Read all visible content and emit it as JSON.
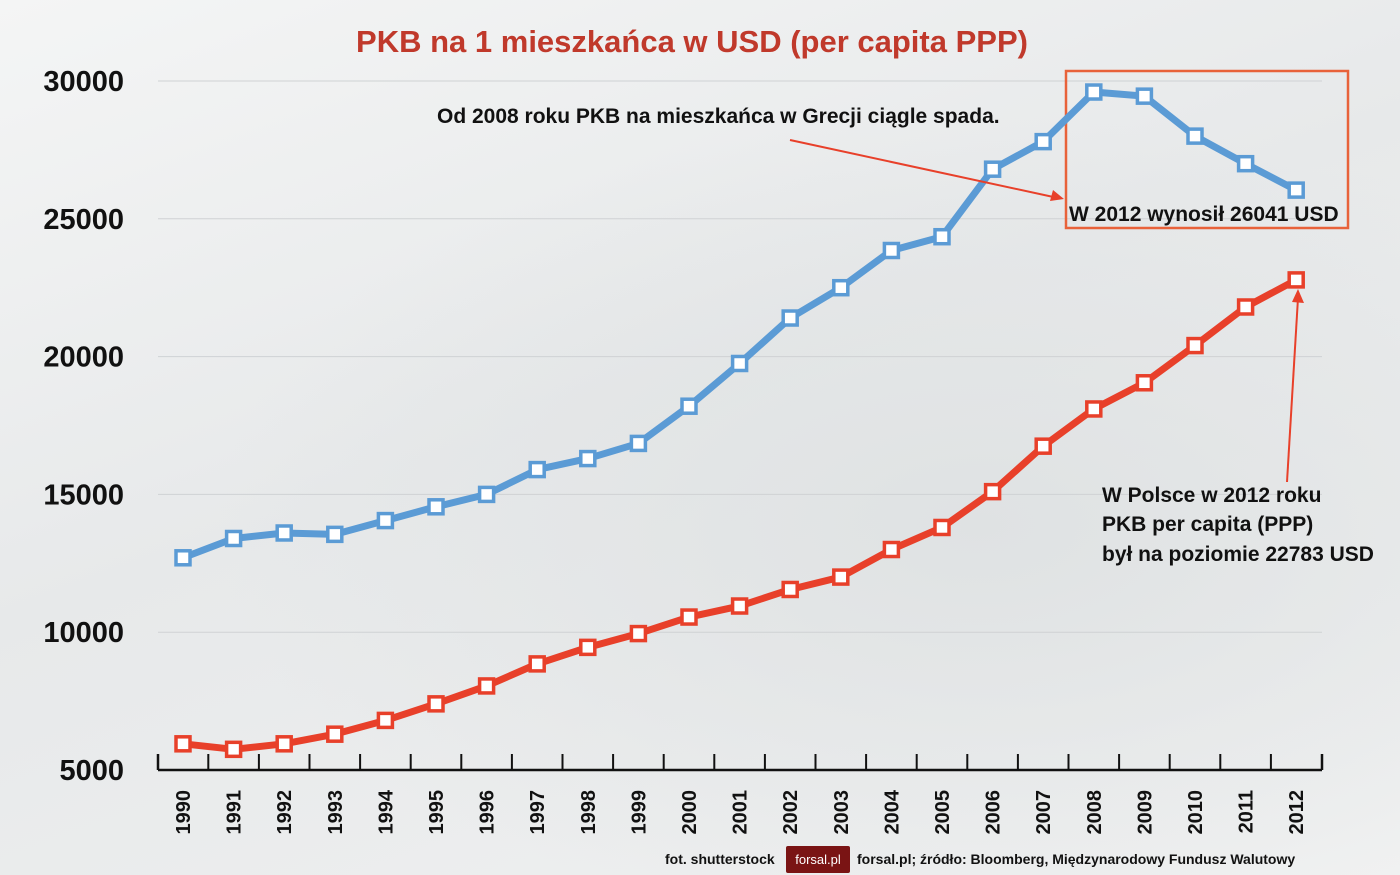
{
  "chart_data": {
    "type": "line",
    "title": "PKB na 1 mieszkańca w USD (per capita PPP)",
    "xlabel": "",
    "ylabel": "",
    "ylim": [
      5000,
      30000
    ],
    "yticks": [
      5000,
      10000,
      15000,
      20000,
      25000,
      30000
    ],
    "grid": true,
    "categories": [
      "1990",
      "1991",
      "1992",
      "1993",
      "1994",
      "1995",
      "1996",
      "1997",
      "1998",
      "1999",
      "2000",
      "2001",
      "2002",
      "2003",
      "2004",
      "2005",
      "2006",
      "2007",
      "2008",
      "2009",
      "2010",
      "2011",
      "2012"
    ],
    "series": [
      {
        "color": "#5b9bd5",
        "values": [
          12700,
          13400,
          13600,
          13550,
          14050,
          14550,
          15000,
          15900,
          16300,
          16850,
          18200,
          19750,
          21400,
          22500,
          23850,
          24350,
          26800,
          27800,
          29600,
          29450,
          28000,
          27000,
          26041
        ]
      },
      {
        "color": "#e8402a",
        "values": [
          5950,
          5750,
          5950,
          6300,
          6800,
          7400,
          8050,
          8850,
          9450,
          9950,
          10550,
          10950,
          11550,
          12000,
          13000,
          13800,
          15100,
          16750,
          18100,
          19050,
          20400,
          21800,
          22783
        ]
      }
    ],
    "annotations": {
      "greece_note": "Od 2008 roku PKB na mieszkańca w Grecji ciągle spada.",
      "greece_2012": "W 2012 wynosił 26041 USD",
      "poland_lines": [
        "W Polsce w 2012 roku",
        "PKB per capita (PPP)",
        "był na poziomie 22783 USD"
      ]
    },
    "highlight_color": "#e8623a"
  },
  "footer": {
    "photo_credit": "fot. shutterstock",
    "logo": "forsal.pl",
    "source": "forsal.pl;  źródło: Bloomberg, Międzynarodowy Fundusz Walutowy"
  }
}
